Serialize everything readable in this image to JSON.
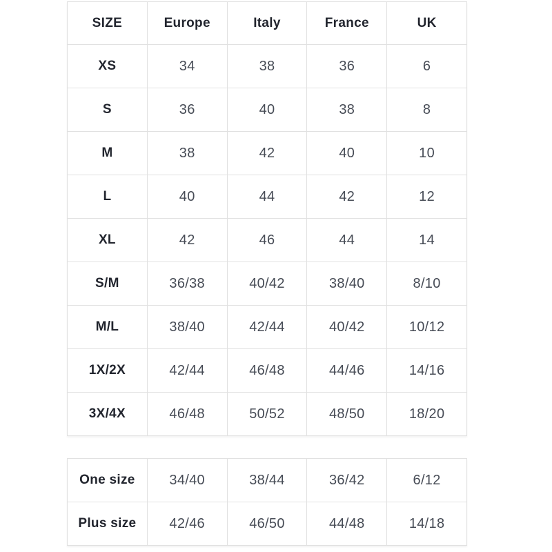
{
  "chart_data": [
    {
      "type": "table",
      "columns": [
        "SIZE",
        "Europe",
        "Italy",
        "France",
        "UK"
      ],
      "rows": [
        [
          "XS",
          "34",
          "38",
          "36",
          "6"
        ],
        [
          "S",
          "36",
          "40",
          "38",
          "8"
        ],
        [
          "M",
          "38",
          "42",
          "40",
          "10"
        ],
        [
          "L",
          "40",
          "44",
          "42",
          "12"
        ],
        [
          "XL",
          "42",
          "46",
          "44",
          "14"
        ],
        [
          "S/M",
          "36/38",
          "40/42",
          "38/40",
          "8/10"
        ],
        [
          "M/L",
          "38/40",
          "42/44",
          "40/42",
          "10/12"
        ],
        [
          "1X/2X",
          "42/44",
          "46/48",
          "44/46",
          "14/16"
        ],
        [
          "3X/4X",
          "46/48",
          "50/52",
          "48/50",
          "18/20"
        ]
      ],
      "layout": {
        "grid": true,
        "header_row": true,
        "first_column_bold": true
      }
    },
    {
      "type": "table",
      "columns": [],
      "rows": [
        [
          "One size",
          "34/40",
          "38/44",
          "36/42",
          "6/12"
        ],
        [
          "Plus size",
          "42/46",
          "46/50",
          "44/48",
          "14/18"
        ]
      ],
      "layout": {
        "grid": true,
        "header_row": false,
        "first_column_bold": true
      }
    }
  ]
}
